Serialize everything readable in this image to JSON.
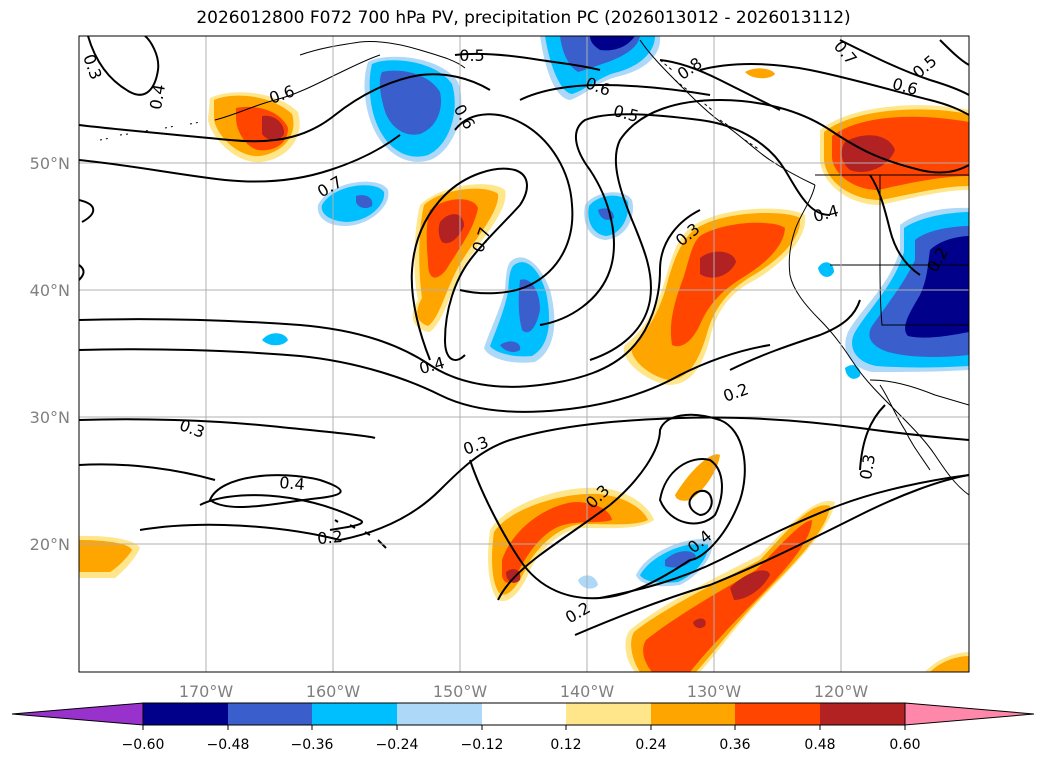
{
  "title": "2026012800 F072 700 hPa PV, precipitation PC (2026013012 - 2026013112)",
  "map": {
    "lon_ticks": [
      "170°W",
      "160°W",
      "150°W",
      "140°W",
      "130°W",
      "120°W"
    ],
    "lat_ticks": [
      "50°N",
      "40°N",
      "30°N",
      "20°N"
    ],
    "contour_labels": [
      {
        "id": "c1",
        "text": "0.3",
        "rot": 70
      },
      {
        "id": "c2",
        "text": "0.4",
        "rot": -80
      },
      {
        "id": "c3",
        "text": "0.6",
        "rot": -20
      },
      {
        "id": "c4",
        "text": "0.5",
        "rot": 0
      },
      {
        "id": "c5",
        "text": "0.6",
        "rot": 60
      },
      {
        "id": "c6",
        "text": "0.6",
        "rot": 20
      },
      {
        "id": "c7",
        "text": "0.5",
        "rot": 15
      },
      {
        "id": "c8",
        "text": "0.8",
        "rot": -35
      },
      {
        "id": "c9",
        "text": "0.7",
        "rot": 50
      },
      {
        "id": "c10",
        "text": "0.5",
        "rot": -40
      },
      {
        "id": "c11",
        "text": "0.6",
        "rot": 15
      },
      {
        "id": "c12",
        "text": "0.7",
        "rot": -30
      },
      {
        "id": "c13",
        "text": "0.7",
        "rot": -70
      },
      {
        "id": "c14",
        "text": "0.3",
        "rot": -40
      },
      {
        "id": "c15",
        "text": "0.4",
        "rot": -15
      },
      {
        "id": "c16",
        "text": "0.2",
        "rot": -60
      },
      {
        "id": "c17",
        "text": "0.4",
        "rot": -15
      },
      {
        "id": "c18",
        "text": "0.2",
        "rot": -20
      },
      {
        "id": "c19",
        "text": "0.3",
        "rot": 20
      },
      {
        "id": "c20",
        "text": "0.3",
        "rot": -20
      },
      {
        "id": "c21",
        "text": "0.3",
        "rot": -80
      },
      {
        "id": "c22",
        "text": "0.4",
        "rot": 5
      },
      {
        "id": "c23",
        "text": "0.2",
        "rot": -5
      },
      {
        "id": "c24",
        "text": "0.3",
        "rot": -45
      },
      {
        "id": "c25",
        "text": "0.4",
        "rot": -40
      },
      {
        "id": "c26",
        "text": "0.2",
        "rot": -30
      }
    ]
  },
  "colorbar": {
    "ticks": [
      "−0.60",
      "−0.48",
      "−0.36",
      "−0.24",
      "−0.12",
      "0.12",
      "0.24",
      "0.36",
      "0.48",
      "0.60"
    ],
    "colors": [
      "#9932cc",
      "#00008b",
      "#3a5fcd",
      "#00bfff",
      "#add8f7",
      "#ffffff",
      "#ffe68a",
      "#ffa500",
      "#ff4500",
      "#b22222",
      "#ff88aa"
    ]
  },
  "colors": {
    "neg_strong": "#00008b",
    "neg_mid": "#3a5fcd",
    "neg_light": "#00bfff",
    "neg_pale": "#add8f7",
    "pos_pale": "#ffe68a",
    "pos_light": "#ffa500",
    "pos_mid": "#ff4500",
    "pos_strong": "#b22222"
  }
}
